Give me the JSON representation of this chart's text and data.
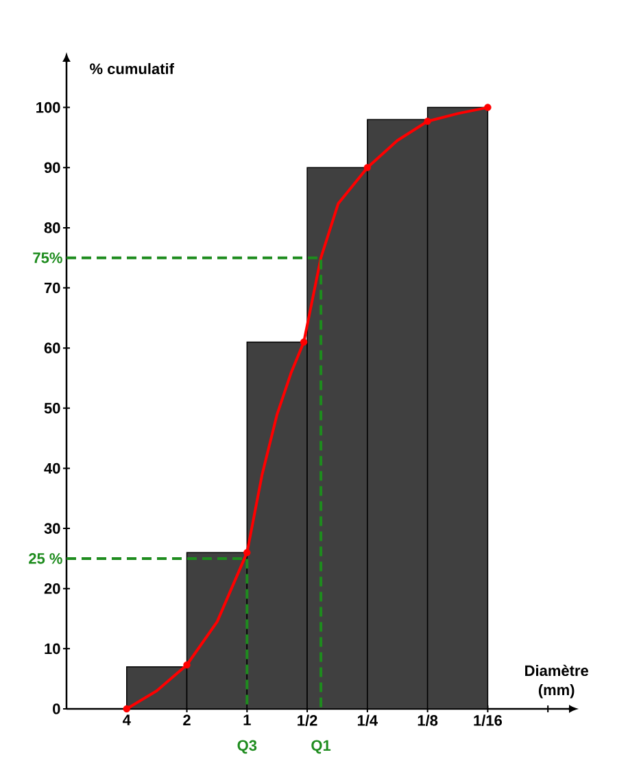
{
  "chart_data": {
    "type": "histogram",
    "xlabel": "Diamètre (mm)",
    "ylabel": "% cumulatif",
    "bins": [
      4,
      2,
      1,
      0.5,
      0.25,
      0.125,
      0.0625
    ],
    "values": [
      7,
      26,
      61,
      90,
      98,
      100
    ],
    "color": "#404040",
    "log": "x",
    "xlim": [
      8,
      0.0245
    ],
    "ylim": [
      0,
      107.6
    ],
    "xticks": [
      {
        "value": 4,
        "label": "4"
      },
      {
        "value": 2,
        "label": "2"
      },
      {
        "value": 1,
        "label": "1"
      },
      {
        "value": 0.5,
        "label": "1/2"
      },
      {
        "value": 0.25,
        "label": "1/4"
      },
      {
        "value": 0.125,
        "label": "1/8"
      },
      {
        "value": 0.0625,
        "label": "1/16"
      },
      {
        "value": 0.03125,
        "label": null
      }
    ],
    "yticks": [
      0,
      10,
      20,
      30,
      40,
      50,
      60,
      70,
      80,
      90,
      100
    ],
    "series": [
      {
        "type": "line",
        "color": "#ff0000",
        "marker": "none",
        "line_style": "solid",
        "x": [
          4,
          2.83,
          2,
          1.41,
          1,
          0.84,
          0.707,
          0.6,
          0.52,
          0.427,
          0.35,
          0.25,
          0.177,
          0.125,
          0.088,
          0.0625
        ],
        "values": [
          0,
          3,
          7.3,
          14.5,
          26,
          39,
          49,
          56,
          61,
          75,
          84,
          90,
          94.5,
          97.7,
          99,
          100
        ]
      },
      {
        "type": "scatter",
        "color": "#ff0000",
        "marker": "circle",
        "x": [
          4,
          2,
          1,
          0.52,
          0.25,
          0.125,
          0.0625
        ],
        "values": [
          0,
          7.3,
          26,
          61,
          90,
          97.7,
          100
        ]
      },
      {
        "type": "line",
        "color": "#1e8c1e",
        "marker": "none",
        "line_style": "dashed",
        "x": [
          8,
          0.427,
          0.427
        ],
        "values": [
          75,
          75,
          0
        ]
      },
      {
        "type": "line",
        "color": "#1e8c1e",
        "marker": "none",
        "line_style": "dashed",
        "x": [
          8,
          1,
          1
        ],
        "values": [
          25,
          25,
          0
        ]
      }
    ],
    "annotations": [
      {
        "text": "75%",
        "x": 8,
        "y": 75
      },
      {
        "text": "25 %",
        "x": 8,
        "y": 25
      },
      {
        "text": "Q3",
        "x": 1,
        "y": 0
      },
      {
        "text": "Q1",
        "x": 0.427,
        "y": 0
      }
    ]
  }
}
